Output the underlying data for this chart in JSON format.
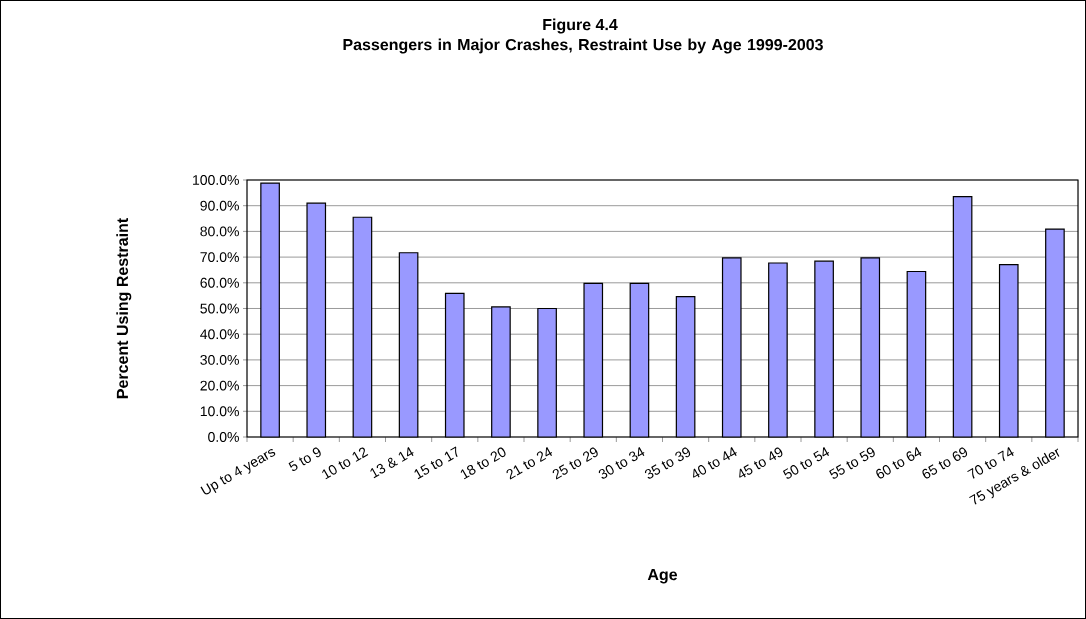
{
  "chart_data": {
    "type": "bar",
    "title": "Figure 4.4",
    "subtitle": "Passengers in Major Crashes, Restraint Use by Age 1999-2003",
    "xlabel": "Age",
    "ylabel": "Percent Using Restraint",
    "categories": [
      "Up to 4 years",
      "5 to 9",
      "10 to 12",
      "13 & 14",
      "15 to 17",
      "18 to 20",
      "21 to 24",
      "25 to 29",
      "30 to 34",
      "35 to 39",
      "40 to 44",
      "45 to 49",
      "50 to 54",
      "55 to 59",
      "60 to 64",
      "65 to 69",
      "70 to 74",
      "75 years & older"
    ],
    "values": [
      98.8,
      91.0,
      85.5,
      71.7,
      55.9,
      50.6,
      50.0,
      59.8,
      59.8,
      54.6,
      69.7,
      67.7,
      68.4,
      69.7,
      64.4,
      93.5,
      67.1,
      80.9
    ],
    "color": "#9999ff",
    "ylim": [
      0,
      100
    ],
    "yticks": [
      {
        "value": 0,
        "label": "0.0%"
      },
      {
        "value": 10,
        "label": "10.0%"
      },
      {
        "value": 20,
        "label": "20.0%"
      },
      {
        "value": 30,
        "label": "30.0%"
      },
      {
        "value": 40,
        "label": "40.0%"
      },
      {
        "value": 50,
        "label": "50.0%"
      },
      {
        "value": 60,
        "label": "60.0%"
      },
      {
        "value": 70,
        "label": "70.0%"
      },
      {
        "value": 80,
        "label": "80.0%"
      },
      {
        "value": 90,
        "label": "90.0%"
      },
      {
        "value": 100,
        "label": "100.0%"
      }
    ],
    "grid": "y"
  }
}
